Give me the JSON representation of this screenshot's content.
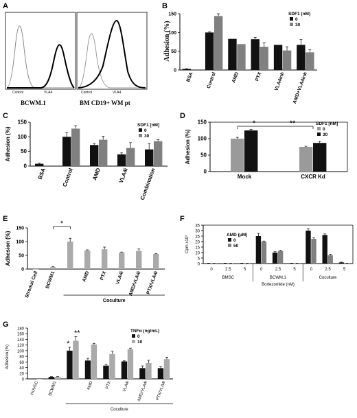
{
  "colors": {
    "series0": "#111111",
    "series30": "#808080",
    "grayLight": "#9a9a9a",
    "axis": "#000000"
  },
  "panels": {
    "A": {
      "letter": "A",
      "left_caption": "BCWM.1",
      "right_caption": "BM CD19+ WM pt",
      "left_control": "Control",
      "left_vla4": "VLA4",
      "right_control": "Control",
      "right_vla4": "VLA4"
    },
    "B": {
      "letter": "B"
    },
    "C": {
      "letter": "C"
    },
    "D": {
      "letter": "D"
    },
    "E": {
      "letter": "E",
      "group_label": "Coculture"
    },
    "F": {
      "letter": "F",
      "group_labels": [
        "BMSC",
        "BCWM.1",
        "Coculture"
      ]
    },
    "G": {
      "letter": "G",
      "group_label": "Coculture"
    }
  },
  "chart_data": [
    {
      "id": "A",
      "type": "histogram-overlay",
      "panels": [
        {
          "caption": "BCWM.1",
          "curves": [
            "Control",
            "VLA4"
          ]
        },
        {
          "caption": "BM CD19+ WM pt",
          "curves": [
            "Control",
            "VLA4"
          ]
        }
      ]
    },
    {
      "id": "B",
      "type": "bar",
      "categories": [
        "BSA",
        "Control",
        "AMD",
        "PTX",
        "VLA4inh",
        "AMD+VLA4inh"
      ],
      "ylabel": "Adhesion (%)",
      "ylim": [
        0,
        150
      ],
      "yticks": [
        0,
        50,
        100,
        150
      ],
      "legend_title": "SDF1 (nM)",
      "series": [
        {
          "name": "0",
          "color": "#111111",
          "values": [
            3,
            100,
            83,
            82,
            67,
            67
          ],
          "errors": [
            0.5,
            2,
            0,
            5,
            0,
            14
          ]
        },
        {
          "name": "30",
          "color": "#808080",
          "values": [
            null,
            144,
            69,
            62,
            52,
            47
          ],
          "errors": [
            null,
            6,
            0,
            11,
            10,
            7
          ]
        }
      ]
    },
    {
      "id": "C",
      "type": "bar",
      "categories": [
        "BSA",
        "Control",
        "AMD",
        "VLA4i",
        "Combination"
      ],
      "ylabel": "Adhesion (%)",
      "ylim": [
        0,
        150
      ],
      "yticks": [
        0,
        50,
        100,
        150
      ],
      "legend_title": "SDF1 [nM]",
      "series": [
        {
          "name": "0",
          "color": "#111111",
          "values": [
            8,
            100,
            72,
            40,
            57
          ],
          "errors": [
            2,
            14,
            5,
            5,
            20
          ]
        },
        {
          "name": "30",
          "color": "#808080",
          "values": [
            null,
            128,
            90,
            62,
            85
          ],
          "errors": [
            null,
            10,
            12,
            18,
            5
          ]
        }
      ]
    },
    {
      "id": "D",
      "type": "bar",
      "categories": [
        "Mock",
        "CXCR Kd"
      ],
      "ylabel": "Adhesion (%)",
      "ylim": [
        0,
        150
      ],
      "yticks": [
        0,
        50,
        100,
        150
      ],
      "legend_title": "SDF1 [nM]",
      "series": [
        {
          "name": "0",
          "color": "#9a9a9a",
          "values": [
            100,
            75
          ],
          "errors": [
            4,
            2
          ]
        },
        {
          "name": "30",
          "color": "#111111",
          "values": [
            125,
            87
          ],
          "errors": [
            3,
            5
          ]
        }
      ],
      "annotations": [
        "*",
        "**"
      ]
    },
    {
      "id": "E",
      "type": "bar",
      "categories": [
        "Stromal Cell",
        "BCWM1",
        "",
        "AMD",
        "PTX",
        "VLA4i",
        "AMD/VLA4i",
        "PTX/VLA4i"
      ],
      "ylabel": "Adhesion (%)",
      "ylim": [
        0,
        150
      ],
      "yticks": [
        0,
        50,
        100,
        150
      ],
      "series": [
        {
          "name": "",
          "color": "#aaaaaa",
          "values": [
            0,
            7,
            100,
            68,
            72,
            60,
            66,
            55
          ],
          "errors": [
            0,
            2,
            12,
            2,
            8,
            2,
            7,
            1
          ]
        }
      ],
      "annotations": [
        "*"
      ]
    },
    {
      "id": "F",
      "type": "bar",
      "categories": [
        "0",
        "2.5",
        "5",
        "0",
        "2.5",
        "5",
        "0",
        "2.5",
        "5"
      ],
      "xlabel": "Bortezomide (nM)",
      "ylabel": "Cpm x10³",
      "ylim": [
        0,
        35
      ],
      "yticks": [
        0,
        5,
        10,
        15,
        20,
        25,
        30,
        35
      ],
      "legend_title": "AMD (μM)",
      "series": [
        {
          "name": "0",
          "color": "#111111",
          "values": [
            0.3,
            0.3,
            0.3,
            25,
            10,
            0.3,
            30,
            26,
            1
          ],
          "errors": [
            0.1,
            0.1,
            0.1,
            2.5,
            0.8,
            0.1,
            1.8,
            1,
            0.3
          ]
        },
        {
          "name": "50",
          "color": "#808080",
          "values": [
            0.3,
            0.3,
            0.3,
            20,
            11.5,
            0.3,
            22.5,
            7.5,
            0.3
          ],
          "errors": [
            0.1,
            0.1,
            0.1,
            0.5,
            0.6,
            0.1,
            1,
            1,
            0.1
          ]
        }
      ]
    },
    {
      "id": "G",
      "type": "bar",
      "categories": [
        "HUVEC",
        "BCWM1",
        "",
        "AMD",
        "PTX",
        "VLA4i",
        "AMD/VLA4i",
        "PTX/VLA4i"
      ],
      "ylabel": "Adhesion (%)",
      "ylim": [
        0,
        180
      ],
      "yticks": [
        0,
        20,
        40,
        60,
        80,
        100,
        120,
        140,
        160,
        180
      ],
      "legend_title": "TNFα (ng/mL)",
      "series": [
        {
          "name": "0",
          "color": "#111111",
          "values": [
            0,
            7,
            100,
            65,
            47,
            62,
            38,
            38
          ],
          "errors": [
            0,
            1,
            12,
            8,
            5,
            2,
            8,
            6
          ]
        },
        {
          "name": "10",
          "color": "#aaaaaa",
          "values": [
            0,
            7,
            135,
            122,
            88,
            105,
            56,
            70
          ],
          "errors": [
            0,
            1,
            15,
            4,
            10,
            4,
            10,
            7
          ]
        }
      ],
      "annotations": [
        "*",
        "**"
      ]
    }
  ]
}
